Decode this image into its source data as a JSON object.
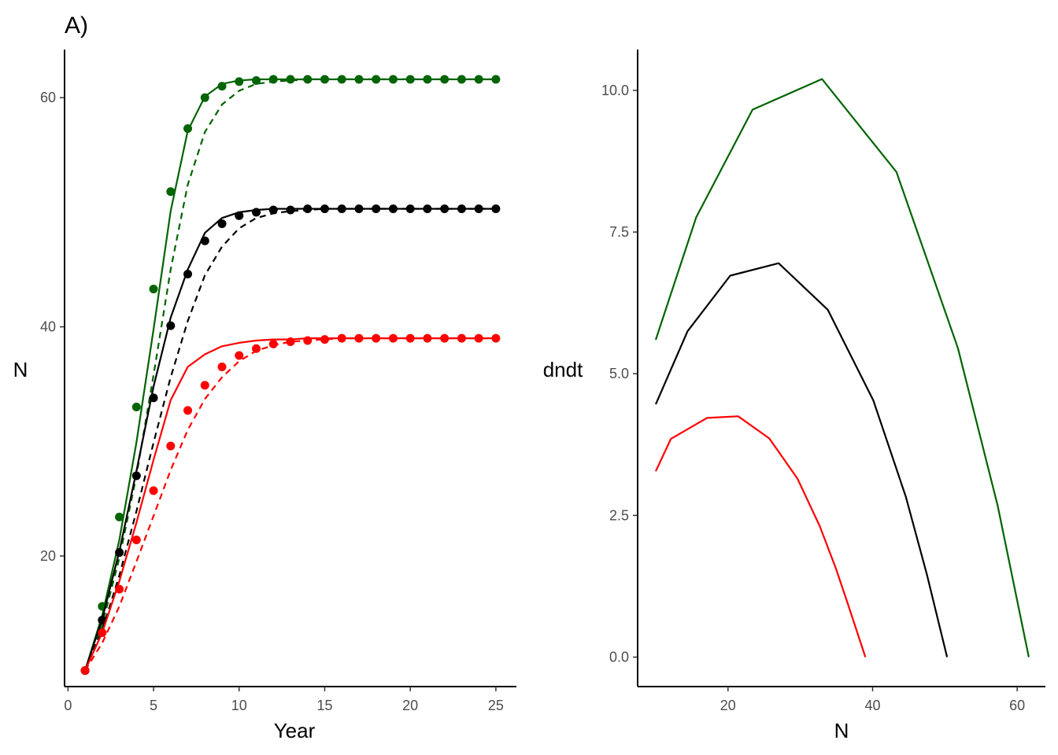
{
  "chart_data": [
    {
      "type": "line",
      "tag": "A)",
      "xlabel": "Year",
      "ylabel": "N",
      "xlim": [
        -0.2,
        26.2
      ],
      "ylim": [
        8.6,
        64.2
      ],
      "xticks": [
        0,
        5,
        10,
        15,
        20,
        25
      ],
      "yticks": [
        20,
        40,
        60
      ],
      "legend": "none",
      "grid": false,
      "series": [
        {
          "color": "#006400",
          "style": "solid",
          "x": [
            1,
            2,
            3,
            4,
            5,
            6,
            7,
            8,
            9,
            10,
            11,
            12,
            13,
            14,
            15,
            16,
            17,
            18,
            19,
            20,
            21,
            22,
            23,
            24,
            25
          ],
          "values": [
            10.0,
            14.8,
            21.4,
            29.9,
            39.8,
            50.1,
            57.1,
            60.1,
            61.2,
            61.5,
            61.6,
            61.6,
            61.6,
            61.6,
            61.6,
            61.6,
            61.6,
            61.6,
            61.6,
            61.6,
            61.6,
            61.6,
            61.6,
            61.6,
            61.6
          ]
        },
        {
          "color": "#006400",
          "style": "dashed",
          "x": [
            1,
            2,
            3,
            4,
            5,
            6,
            7,
            8,
            9,
            10,
            11,
            12,
            13,
            14,
            15,
            16,
            17,
            18,
            19,
            20,
            21,
            22,
            23,
            24,
            25
          ],
          "values": [
            10.0,
            14.0,
            19.8,
            27.0,
            35.8,
            45.0,
            52.4,
            57.0,
            59.4,
            60.6,
            61.2,
            61.4,
            61.5,
            61.6,
            61.6,
            61.6,
            61.6,
            61.6,
            61.6,
            61.6,
            61.6,
            61.6,
            61.6,
            61.6,
            61.6
          ]
        },
        {
          "color": "#006400",
          "style": "points",
          "x": [
            1,
            2,
            3,
            4,
            5,
            6,
            7,
            8,
            9,
            10,
            11,
            12,
            13,
            14,
            15,
            16,
            17,
            18,
            19,
            20,
            21,
            22,
            23,
            24,
            25
          ],
          "values": [
            10.0,
            15.6,
            23.4,
            33.0,
            43.3,
            51.8,
            57.3,
            60.0,
            61.0,
            61.4,
            61.5,
            61.6,
            61.6,
            61.6,
            61.6,
            61.6,
            61.6,
            61.6,
            61.6,
            61.6,
            61.6,
            61.6,
            61.6,
            61.6,
            61.6
          ]
        },
        {
          "color": "#000000",
          "style": "solid",
          "x": [
            1,
            2,
            3,
            4,
            5,
            6,
            7,
            8,
            9,
            10,
            11,
            12,
            13,
            14,
            15,
            16,
            17,
            18,
            19,
            20,
            21,
            22,
            23,
            24,
            25
          ],
          "values": [
            10.0,
            14.5,
            20.4,
            27.4,
            34.8,
            40.8,
            45.0,
            48.2,
            49.5,
            50.0,
            50.2,
            50.3,
            50.3,
            50.3,
            50.3,
            50.3,
            50.3,
            50.3,
            50.3,
            50.3,
            50.3,
            50.3,
            50.3,
            50.3,
            50.3
          ]
        },
        {
          "color": "#000000",
          "style": "dashed",
          "x": [
            1,
            2,
            3,
            4,
            5,
            6,
            7,
            8,
            9,
            10,
            11,
            12,
            13,
            14,
            15,
            16,
            17,
            18,
            19,
            20,
            21,
            22,
            23,
            24,
            25
          ],
          "values": [
            10.0,
            13.5,
            18.3,
            23.9,
            29.9,
            35.6,
            40.5,
            44.5,
            47.0,
            48.6,
            49.5,
            49.9,
            50.1,
            50.2,
            50.3,
            50.3,
            50.3,
            50.3,
            50.3,
            50.3,
            50.3,
            50.3,
            50.3,
            50.3,
            50.3
          ]
        },
        {
          "color": "#000000",
          "style": "points",
          "x": [
            1,
            2,
            3,
            4,
            5,
            6,
            7,
            8,
            9,
            10,
            11,
            12,
            13,
            14,
            15,
            16,
            17,
            18,
            19,
            20,
            21,
            22,
            23,
            24,
            25
          ],
          "values": [
            10.0,
            14.4,
            20.3,
            27.0,
            33.8,
            40.1,
            44.6,
            47.5,
            49.0,
            49.7,
            50.0,
            50.2,
            50.2,
            50.3,
            50.3,
            50.3,
            50.3,
            50.3,
            50.3,
            50.3,
            50.3,
            50.3,
            50.3,
            50.3,
            50.3
          ]
        },
        {
          "color": "#ff0000",
          "style": "solid",
          "x": [
            1,
            2,
            3,
            4,
            5,
            6,
            7,
            8,
            9,
            10,
            11,
            12,
            13,
            14,
            15,
            16,
            17,
            18,
            19,
            20,
            21,
            22,
            23,
            24,
            25
          ],
          "values": [
            10.0,
            13.3,
            17.8,
            22.9,
            28.4,
            33.6,
            36.5,
            37.6,
            38.3,
            38.6,
            38.8,
            38.9,
            38.9,
            39.0,
            39.0,
            39.0,
            39.0,
            39.0,
            39.0,
            39.0,
            39.0,
            39.0,
            39.0,
            39.0,
            39.0
          ]
        },
        {
          "color": "#ff0000",
          "style": "dashed",
          "x": [
            1,
            2,
            3,
            4,
            5,
            6,
            7,
            8,
            9,
            10,
            11,
            12,
            13,
            14,
            15,
            16,
            17,
            18,
            19,
            20,
            21,
            22,
            23,
            24,
            25
          ],
          "values": [
            10.0,
            12.4,
            15.6,
            19.5,
            23.5,
            27.5,
            31.0,
            33.7,
            35.6,
            37.0,
            37.9,
            38.4,
            38.7,
            38.8,
            38.9,
            39.0,
            39.0,
            39.0,
            39.0,
            39.0,
            39.0,
            39.0,
            39.0,
            39.0,
            39.0
          ]
        },
        {
          "color": "#ff0000",
          "style": "points",
          "x": [
            1,
            2,
            3,
            4,
            5,
            6,
            7,
            8,
            9,
            10,
            11,
            12,
            13,
            14,
            15,
            16,
            17,
            18,
            19,
            20,
            21,
            22,
            23,
            24,
            25
          ],
          "values": [
            10.0,
            13.3,
            17.1,
            21.4,
            25.7,
            29.6,
            32.7,
            34.9,
            36.5,
            37.5,
            38.1,
            38.5,
            38.7,
            38.8,
            38.9,
            39.0,
            39.0,
            39.0,
            39.0,
            39.0,
            39.0,
            39.0,
            39.0,
            39.0,
            39.0
          ]
        }
      ]
    },
    {
      "type": "line",
      "xlabel": "N",
      "ylabel": "dndt",
      "xlim": [
        7.5,
        63.9
      ],
      "ylim": [
        -0.52,
        10.72
      ],
      "xticks": [
        20,
        40,
        60
      ],
      "yticks": [
        0.0,
        2.5,
        5.0,
        7.5,
        10.0
      ],
      "ytick_labels": [
        "0.0",
        "2.5",
        "5.0",
        "7.5",
        "10.0"
      ],
      "legend": "none",
      "grid": false,
      "series": [
        {
          "color": "#006400",
          "style": "solid",
          "x": [
            10.0,
            15.6,
            23.4,
            33.0,
            43.3,
            51.8,
            57.3,
            61.6
          ],
          "values": [
            5.6,
            7.76,
            9.66,
            10.2,
            8.56,
            5.45,
            2.67,
            0.0
          ]
        },
        {
          "color": "#000000",
          "style": "solid",
          "x": [
            10.0,
            14.4,
            20.3,
            27.0,
            33.8,
            40.1,
            44.6,
            47.5,
            50.3
          ],
          "values": [
            4.46,
            5.75,
            6.73,
            6.95,
            6.13,
            4.53,
            2.83,
            1.46,
            0.0
          ]
        },
        {
          "color": "#ff0000",
          "style": "solid",
          "x": [
            10.0,
            12.1,
            17.1,
            21.4,
            25.7,
            29.6,
            32.7,
            34.9,
            36.5,
            39.0
          ],
          "values": [
            3.28,
            3.85,
            4.22,
            4.25,
            3.86,
            3.15,
            2.31,
            1.57,
            0.97,
            0.0
          ]
        }
      ]
    }
  ]
}
